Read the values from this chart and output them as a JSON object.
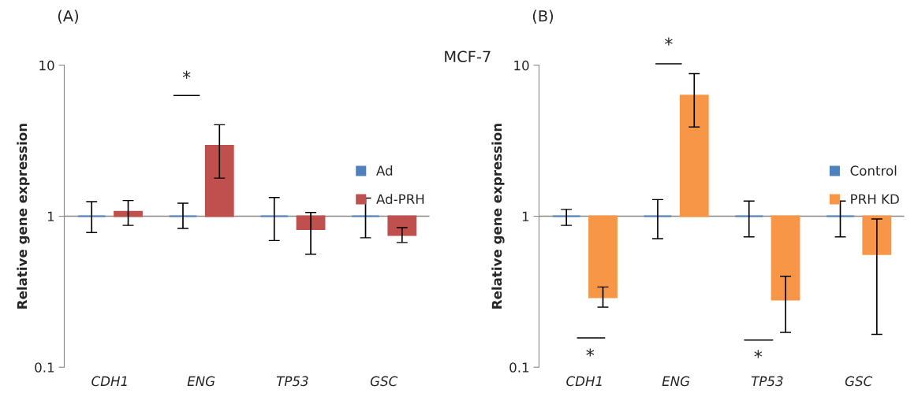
{
  "chart_data": [
    {
      "type": "bar",
      "title": "(A)",
      "ylabel": "Relative gene expression",
      "categories": [
        "CDH1",
        "ENG",
        "TP53",
        "GSC"
      ],
      "log": true,
      "ylim": [
        0.1,
        10
      ],
      "yticks": [
        0.1,
        1,
        10
      ],
      "legend": "right",
      "ref_lines": [
        {
          "axis": "y",
          "value": 1,
          "color": "#888888"
        }
      ],
      "series": [
        {
          "name": "Ad",
          "color": "#4f81bd",
          "base": [
            1,
            1,
            1,
            1
          ],
          "values": [
            0,
            0,
            0,
            0
          ],
          "errors": [
            [
              0.78,
              1.25
            ],
            [
              0.83,
              1.22
            ],
            [
              0.69,
              1.33
            ],
            [
              0.72,
              1.32
            ]
          ]
        },
        {
          "name": "Ad-PRH",
          "color": "#c0504d",
          "base": [
            1,
            1,
            1,
            1
          ],
          "values": [
            0.07,
            1.93,
            -0.18,
            -0.25
          ],
          "errors": [
            [
              0.87,
              1.27
            ],
            [
              1.79,
              4.04
            ],
            [
              0.56,
              1.06
            ],
            [
              0.67,
              0.84
            ]
          ]
        }
      ],
      "annotations": [
        "*"
      ]
    },
    {
      "type": "bar",
      "title": "(B)",
      "ylabel": "Relative gene expression",
      "categories": [
        "CDH1",
        "ENG",
        "TP53",
        "GSC"
      ],
      "log": true,
      "ylim": [
        0.1,
        10
      ],
      "yticks": [
        0.1,
        1,
        10
      ],
      "legend": "right",
      "ref_lines": [
        {
          "axis": "y",
          "value": 1,
          "color": "#888888"
        }
      ],
      "series": [
        {
          "name": "Control",
          "color": "#4f81bd",
          "base": [
            1,
            1,
            1,
            1
          ],
          "values": [
            0,
            0,
            0,
            0
          ],
          "errors": [
            [
              0.87,
              1.11
            ],
            [
              0.71,
              1.29
            ],
            [
              0.73,
              1.26
            ],
            [
              0.73,
              1.26
            ]
          ]
        },
        {
          "name": "PRH KD",
          "color": "#f79646",
          "base": [
            1,
            1,
            1,
            1
          ],
          "values": [
            -0.71,
            5.3,
            -0.72,
            -0.44
          ],
          "errors": [
            [
              0.25,
              0.34
            ],
            [
              3.9,
              8.8
            ],
            [
              0.17,
              0.4
            ],
            [
              0.165,
              0.96
            ]
          ]
        }
      ],
      "annotations": [
        "MCF-7",
        "*",
        "*",
        "*"
      ]
    }
  ]
}
